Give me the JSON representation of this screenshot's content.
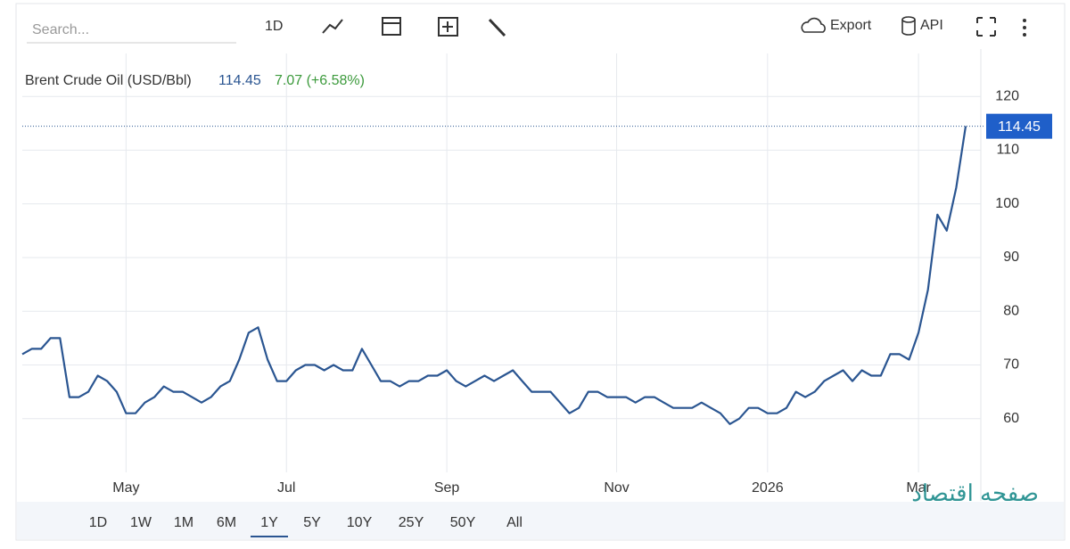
{
  "toolbar": {
    "search_placeholder": "Search...",
    "interval": "1D",
    "export": "Export",
    "api": "API"
  },
  "chart_data": {
    "type": "line",
    "title": "Brent Crude Oil (USD/Bbl)",
    "change": "7.07 (+6.58%)",
    "categories": [
      null,
      null,
      null,
      null,
      null,
      null,
      null,
      null,
      null,
      null,
      null,
      "May",
      null,
      null,
      null,
      null,
      null,
      null,
      null,
      null,
      null,
      null,
      null,
      null,
      null,
      null,
      null,
      null,
      "Jul",
      null,
      null,
      null,
      null,
      null,
      null,
      null,
      null,
      null,
      null,
      null,
      null,
      null,
      null,
      null,
      null,
      "Sep",
      null,
      null,
      null,
      null,
      null,
      null,
      null,
      null,
      null,
      null,
      null,
      null,
      null,
      null,
      null,
      null,
      null,
      "Nov",
      null,
      null,
      null,
      null,
      null,
      null,
      null,
      null,
      null,
      null,
      null,
      null,
      null,
      null,
      null,
      "2026",
      null,
      null,
      null,
      null,
      null,
      null,
      null,
      null,
      null,
      null,
      null,
      null,
      null,
      null,
      null,
      "Mar",
      null,
      null,
      null,
      null,
      null
    ],
    "series": [
      {
        "name": "Brent Crude Oil",
        "color": "#2a5591",
        "values": [
          72,
          73,
          73,
          75,
          75,
          64,
          64,
          65,
          68,
          67,
          65,
          61,
          61,
          63,
          64,
          66,
          65,
          65,
          64,
          63,
          64,
          66,
          67,
          71,
          76,
          77,
          71,
          67,
          67,
          69,
          70,
          70,
          69,
          70,
          69,
          69,
          73,
          70,
          67,
          67,
          66,
          67,
          67,
          68,
          68,
          69,
          67,
          66,
          67,
          68,
          67,
          68,
          69,
          67,
          65,
          65,
          65,
          63,
          61,
          62,
          65,
          65,
          64,
          64,
          64,
          63,
          64,
          64,
          63,
          62,
          62,
          62,
          63,
          62,
          61,
          59,
          60,
          62,
          62,
          61,
          61,
          62,
          65,
          64,
          65,
          67,
          68,
          69,
          67,
          69,
          68,
          68,
          72,
          72,
          71,
          76,
          84,
          98,
          95,
          103,
          114.45
        ]
      }
    ],
    "ylim": [
      50,
      128
    ],
    "yticks": [
      60,
      70,
      80,
      90,
      100,
      110,
      120
    ],
    "grid": true
  },
  "ranges": [
    "1D",
    "1W",
    "1M",
    "6M",
    "1Y",
    "5Y",
    "10Y",
    "25Y",
    "50Y",
    "All"
  ],
  "watermark": "صفحه اقتصاد"
}
